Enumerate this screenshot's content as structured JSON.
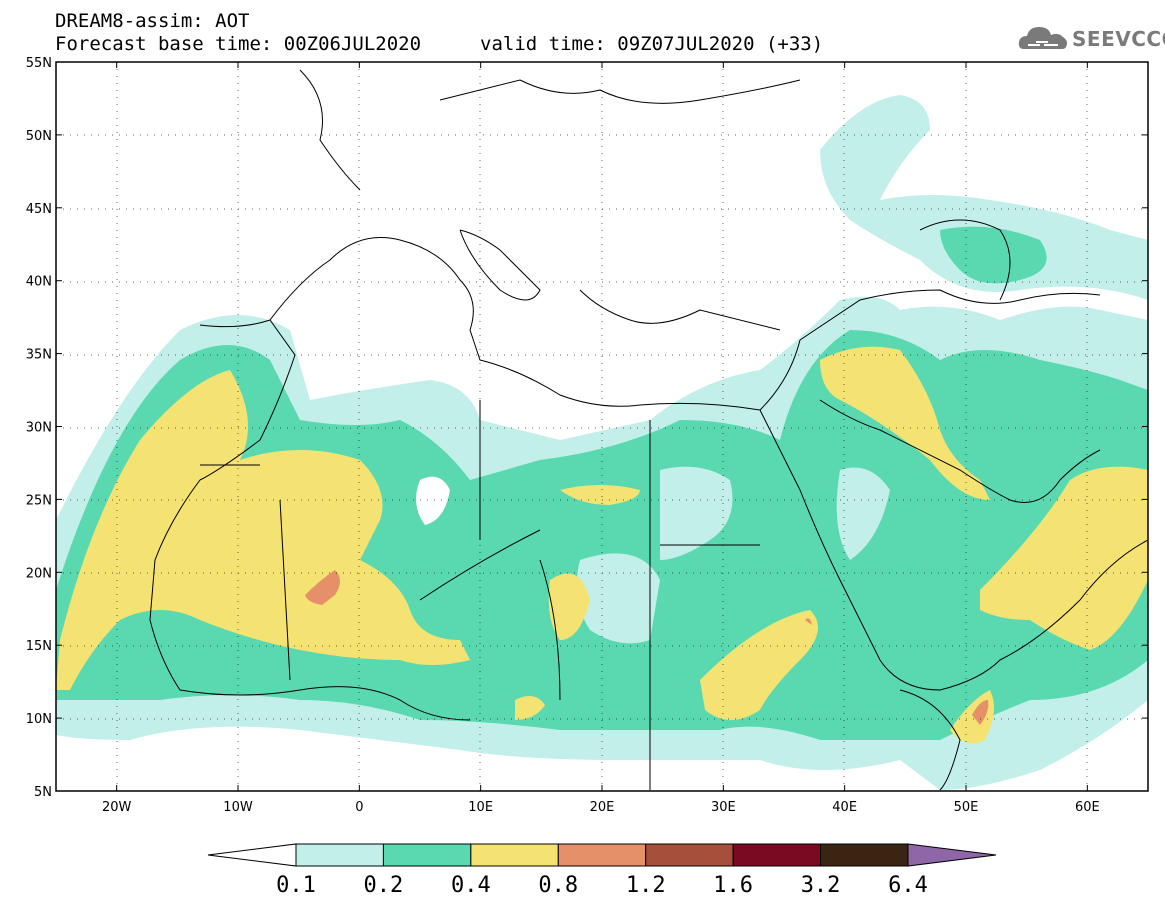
{
  "header": {
    "line1": "DREAM8-assim: AOT",
    "line2": "Forecast base time: 00Z06JUL2020",
    "valid": "valid time: 09Z07JUL2020 (+33)"
  },
  "logo": {
    "text": "SEEVCCC"
  },
  "map": {
    "lon_range": [
      -25,
      65
    ],
    "lat_range": [
      5,
      55
    ],
    "lat_ticks": [
      "5N",
      "10N",
      "15N",
      "20N",
      "25N",
      "30N",
      "35N",
      "40N",
      "45N",
      "50N",
      "55N"
    ],
    "lon_ticks": [
      "20W",
      "10W",
      "0",
      "10E",
      "20E",
      "30E",
      "40E",
      "50E",
      "60E"
    ]
  },
  "colorbar": {
    "levels": [
      "0.1",
      "0.2",
      "0.4",
      "0.8",
      "1.2",
      "1.6",
      "3.2",
      "6.4"
    ],
    "colors": [
      "#ffffff",
      "#c2efe9",
      "#5ad9b0",
      "#f4e372",
      "#e6906a",
      "#a6503c",
      "#7a0a22",
      "#3b2412",
      "#8f66a8"
    ]
  }
}
